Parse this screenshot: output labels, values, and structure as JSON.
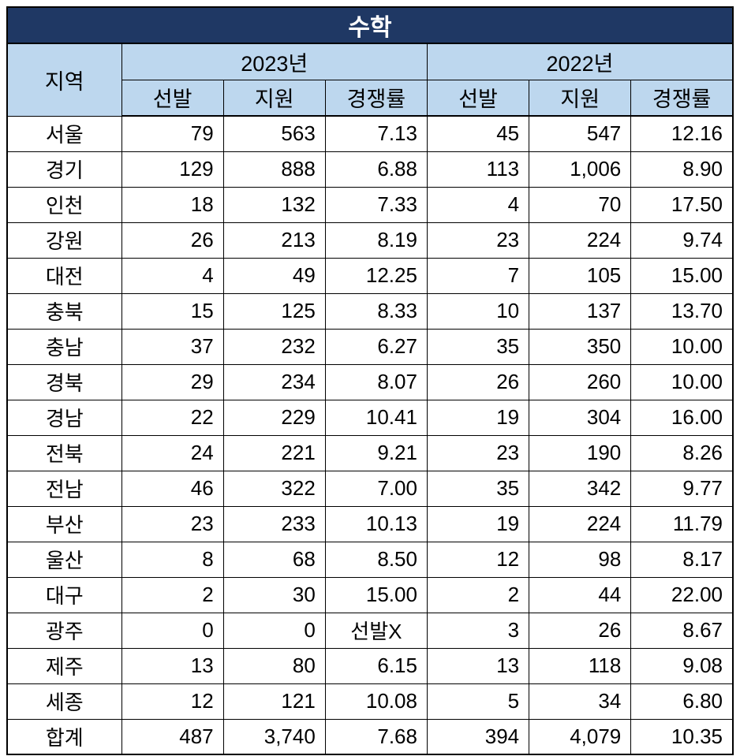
{
  "colors": {
    "title_bg": "#1F3864",
    "title_text": "#FFFFFF",
    "header_bg": "#BDD7EE",
    "cell_bg": "#FFFFFF",
    "cell_text": "#000000",
    "border": "#000000"
  },
  "table": {
    "title": "수학",
    "region_header": "지역",
    "year_groups": [
      {
        "label": "2023년",
        "columns": [
          "선발",
          "지원",
          "경쟁률"
        ]
      },
      {
        "label": "2022년",
        "columns": [
          "선발",
          "지원",
          "경쟁률"
        ]
      }
    ],
    "rows": [
      {
        "region": "서울",
        "values": [
          "79",
          "563",
          "7.13",
          "45",
          "547",
          "12.16"
        ]
      },
      {
        "region": "경기",
        "values": [
          "129",
          "888",
          "6.88",
          "113",
          "1,006",
          "8.90"
        ]
      },
      {
        "region": "인천",
        "values": [
          "18",
          "132",
          "7.33",
          "4",
          "70",
          "17.50"
        ]
      },
      {
        "region": "강원",
        "values": [
          "26",
          "213",
          "8.19",
          "23",
          "224",
          "9.74"
        ]
      },
      {
        "region": "대전",
        "values": [
          "4",
          "49",
          "12.25",
          "7",
          "105",
          "15.00"
        ]
      },
      {
        "region": "충북",
        "values": [
          "15",
          "125",
          "8.33",
          "10",
          "137",
          "13.70"
        ]
      },
      {
        "region": "충남",
        "values": [
          "37",
          "232",
          "6.27",
          "35",
          "350",
          "10.00"
        ]
      },
      {
        "region": "경북",
        "values": [
          "29",
          "234",
          "8.07",
          "26",
          "260",
          "10.00"
        ]
      },
      {
        "region": "경남",
        "values": [
          "22",
          "229",
          "10.41",
          "19",
          "304",
          "16.00"
        ]
      },
      {
        "region": "전북",
        "values": [
          "24",
          "221",
          "9.21",
          "23",
          "190",
          "8.26"
        ]
      },
      {
        "region": "전남",
        "values": [
          "46",
          "322",
          "7.00",
          "35",
          "342",
          "9.77"
        ]
      },
      {
        "region": "부산",
        "values": [
          "23",
          "233",
          "10.13",
          "19",
          "224",
          "11.79"
        ]
      },
      {
        "region": "울산",
        "values": [
          "8",
          "68",
          "8.50",
          "12",
          "98",
          "8.17"
        ]
      },
      {
        "region": "대구",
        "values": [
          "2",
          "30",
          "15.00",
          "2",
          "44",
          "22.00"
        ]
      },
      {
        "region": "광주",
        "values": [
          "0",
          "0",
          "선발X",
          "3",
          "26",
          "8.67"
        ]
      },
      {
        "region": "제주",
        "values": [
          "13",
          "80",
          "6.15",
          "13",
          "118",
          "9.08"
        ]
      },
      {
        "region": "세종",
        "values": [
          "12",
          "121",
          "10.08",
          "5",
          "34",
          "6.80"
        ]
      },
      {
        "region": "합계",
        "values": [
          "487",
          "3,740",
          "7.68",
          "394",
          "4,079",
          "10.35"
        ]
      }
    ]
  },
  "chart_data": {
    "type": "table",
    "title": "수학",
    "columns": [
      "지역",
      "2023년 선발",
      "2023년 지원",
      "2023년 경쟁률",
      "2022년 선발",
      "2022년 지원",
      "2022년 경쟁률"
    ],
    "rows": [
      [
        "서울",
        79,
        563,
        7.13,
        45,
        547,
        12.16
      ],
      [
        "경기",
        129,
        888,
        6.88,
        113,
        1006,
        8.9
      ],
      [
        "인천",
        18,
        132,
        7.33,
        4,
        70,
        17.5
      ],
      [
        "강원",
        26,
        213,
        8.19,
        23,
        224,
        9.74
      ],
      [
        "대전",
        4,
        49,
        12.25,
        7,
        105,
        15.0
      ],
      [
        "충북",
        15,
        125,
        8.33,
        10,
        137,
        13.7
      ],
      [
        "충남",
        37,
        232,
        6.27,
        35,
        350,
        10.0
      ],
      [
        "경북",
        29,
        234,
        8.07,
        26,
        260,
        10.0
      ],
      [
        "경남",
        22,
        229,
        10.41,
        19,
        304,
        16.0
      ],
      [
        "전북",
        24,
        221,
        9.21,
        23,
        190,
        8.26
      ],
      [
        "전남",
        46,
        322,
        7.0,
        35,
        342,
        9.77
      ],
      [
        "부산",
        23,
        233,
        10.13,
        19,
        224,
        11.79
      ],
      [
        "울산",
        8,
        68,
        8.5,
        12,
        98,
        8.17
      ],
      [
        "대구",
        2,
        30,
        15.0,
        2,
        44,
        22.0
      ],
      [
        "광주",
        0,
        0,
        "선발X",
        3,
        26,
        8.67
      ],
      [
        "제주",
        13,
        80,
        6.15,
        13,
        118,
        9.08
      ],
      [
        "세종",
        12,
        121,
        10.08,
        5,
        34,
        6.8
      ],
      [
        "합계",
        487,
        3740,
        7.68,
        394,
        4079,
        10.35
      ]
    ]
  }
}
